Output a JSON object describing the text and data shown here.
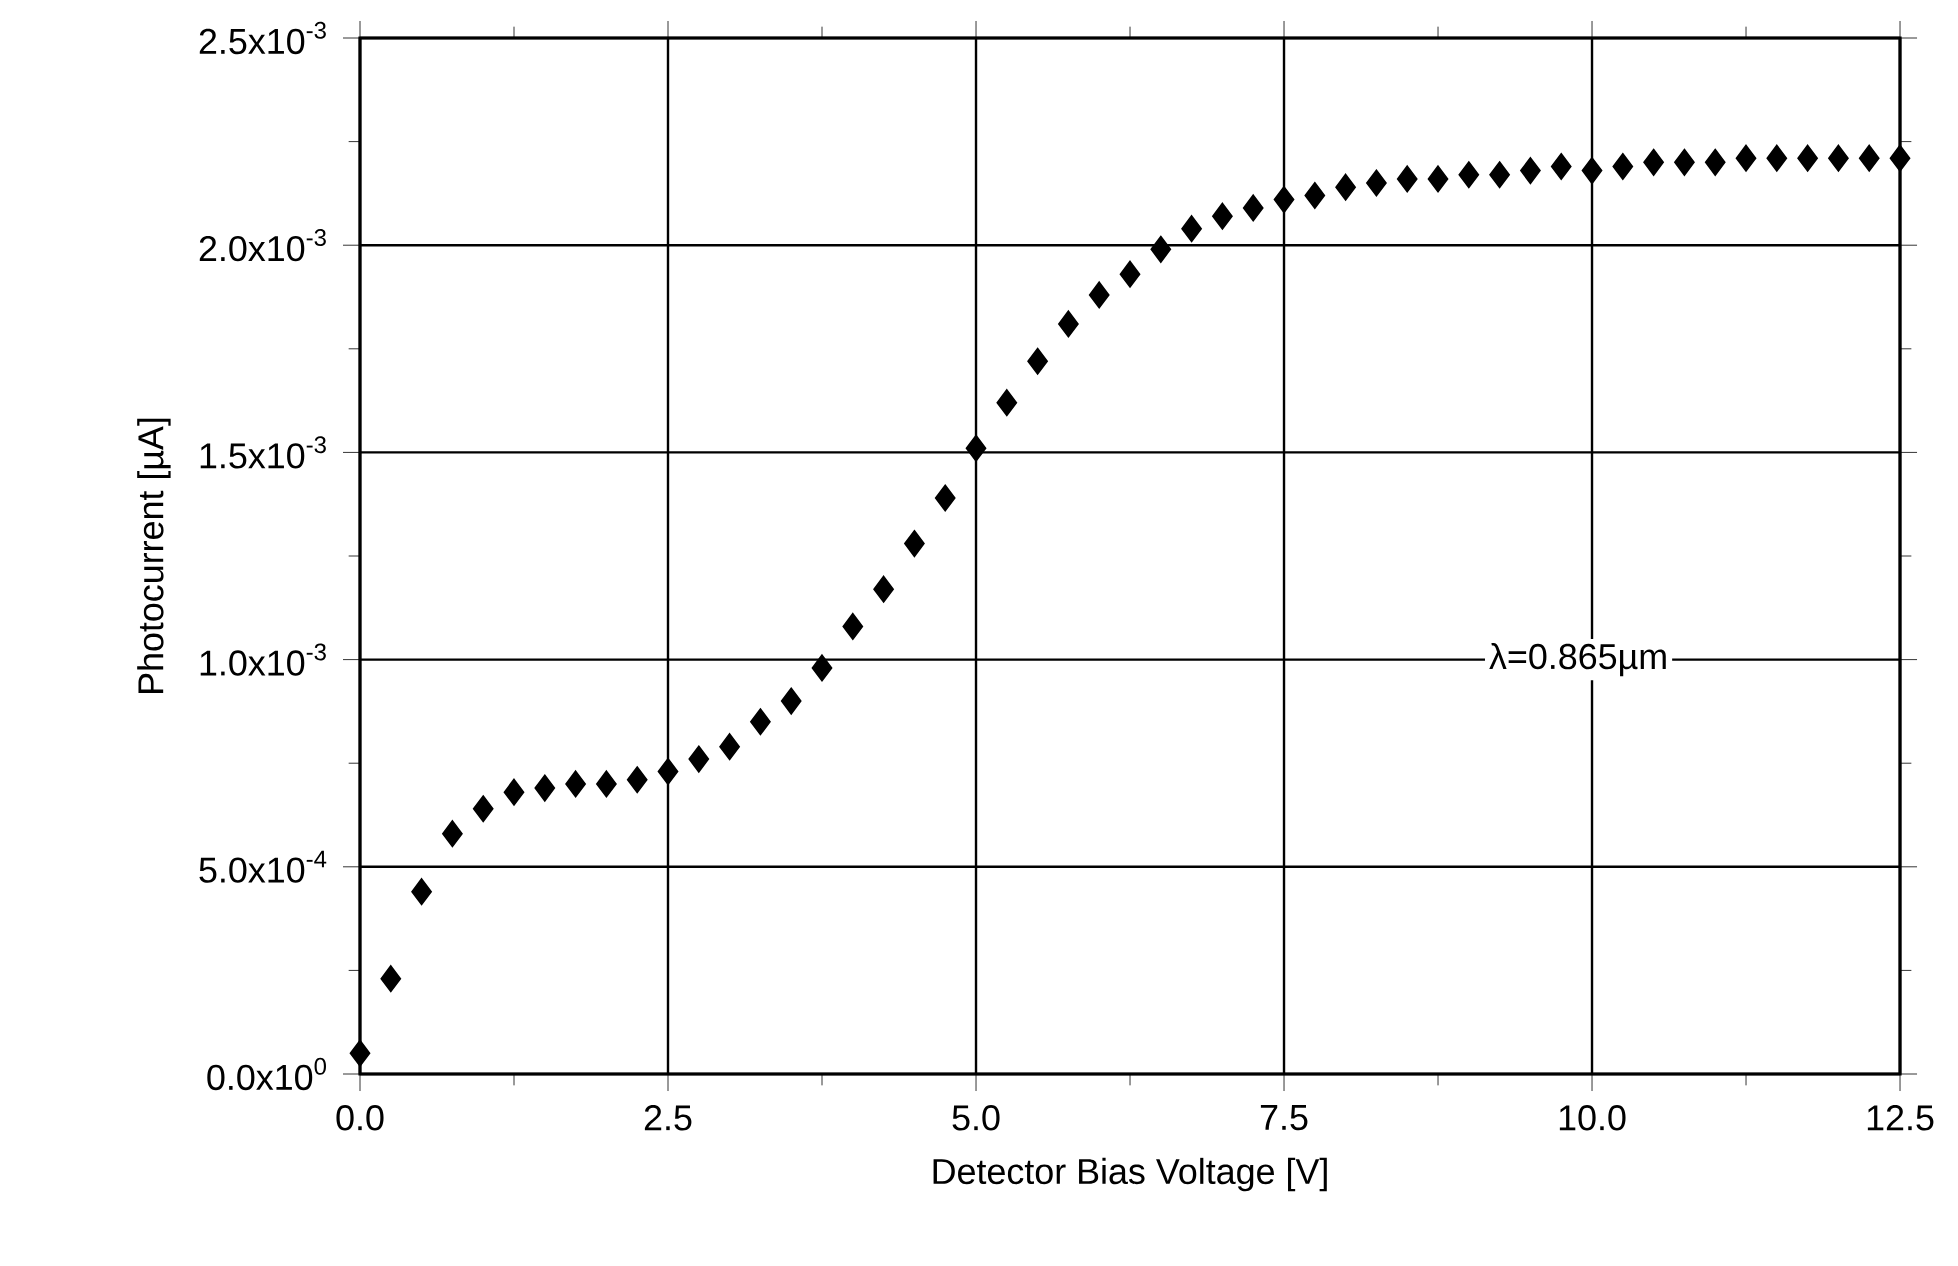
{
  "chart_data": {
    "type": "scatter",
    "xlabel": "Detector Bias Voltage [V]",
    "ylabel": "Photocurrent [µA]",
    "x": [
      0,
      0.25,
      0.5,
      0.75,
      1,
      1.25,
      1.5,
      1.75,
      2,
      2.25,
      2.5,
      2.75,
      3,
      3.25,
      3.5,
      3.75,
      4,
      4.25,
      4.5,
      4.75,
      5,
      5.25,
      5.5,
      5.75,
      6,
      6.25,
      6.5,
      6.75,
      7,
      7.25,
      7.5,
      7.75,
      8,
      8.25,
      8.5,
      8.75,
      9,
      9.25,
      9.5,
      9.75,
      10,
      10.25,
      10.5,
      10.75,
      11,
      11.25,
      11.5,
      11.75,
      12,
      12.25,
      12.5
    ],
    "series": [
      {
        "color": "#000000",
        "values": [
          5e-05,
          0.00023,
          0.00044,
          0.00058,
          0.00064,
          0.00068,
          0.00069,
          0.0007,
          0.0007,
          0.00071,
          0.00073,
          0.00076,
          0.00079,
          0.00085,
          0.0009,
          0.00098,
          0.00108,
          0.00117,
          0.00128,
          0.00139,
          0.00151,
          0.00162,
          0.00172,
          0.00181,
          0.00188,
          0.00193,
          0.00199,
          0.00204,
          0.00207,
          0.00209,
          0.00211,
          0.00212,
          0.00214,
          0.00215,
          0.00216,
          0.00216,
          0.00217,
          0.00217,
          0.00218,
          0.00219,
          0.00218,
          0.00219,
          0.0022,
          0.0022,
          0.0022,
          0.00221,
          0.00221,
          0.00221,
          0.00221,
          0.00221,
          0.00221
        ]
      }
    ],
    "marker": "diamond",
    "grid": true,
    "xlim": [
      0,
      12.5
    ],
    "xticks": [
      {
        "value": 0,
        "label": "0.0"
      },
      {
        "value": 2.5,
        "label": "2.5"
      },
      {
        "value": 5,
        "label": "5.0"
      },
      {
        "value": 7.5,
        "label": "7.5"
      },
      {
        "value": 10,
        "label": "10.0"
      },
      {
        "value": 12.5,
        "label": "12.5"
      }
    ],
    "ylim": [
      0,
      0.0025
    ],
    "yticks": [
      {
        "value": 0,
        "label": "0.0x10$^{0}$"
      },
      {
        "value": 0.0005,
        "label": "5.0x10$^{-4}$"
      },
      {
        "value": 0.001,
        "label": "1.0x10$^{-3}$"
      },
      {
        "value": 0.0015,
        "label": "1.5x10$^{-3}$"
      },
      {
        "value": 0.002,
        "label": "2.0x10$^{-3}$"
      },
      {
        "value": 0.0025,
        "label": "2.5x10$^{-3}$"
      }
    ],
    "annotations": [
      "λ=0.865µm"
    ]
  }
}
